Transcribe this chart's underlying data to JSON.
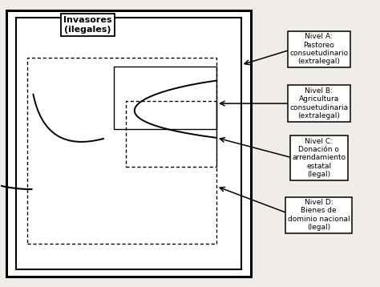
{
  "bg_color": "#f0ede8",
  "invasores_label": "Invasores\n(ilegales)",
  "nivel_a_label": "Nivel A:\nPastoreo\nconsuetudinario\n(extralegal)",
  "nivel_b_label": "Nivel B:\nAgricultura\nconsuetudinaria\n(extralegal)",
  "nivel_c_label": "Nivel C:\nDonación o\narrendamiento\nestatal\n(legal)",
  "nivel_d_label": "Nivel D:\nBienes de\ndominio nacional\n(legal)",
  "lw_outer": 2.2,
  "lw_inner": 1.5,
  "lw_thin": 1.0,
  "fontsize_label": 6.5,
  "fontsize_invasores": 8.0
}
